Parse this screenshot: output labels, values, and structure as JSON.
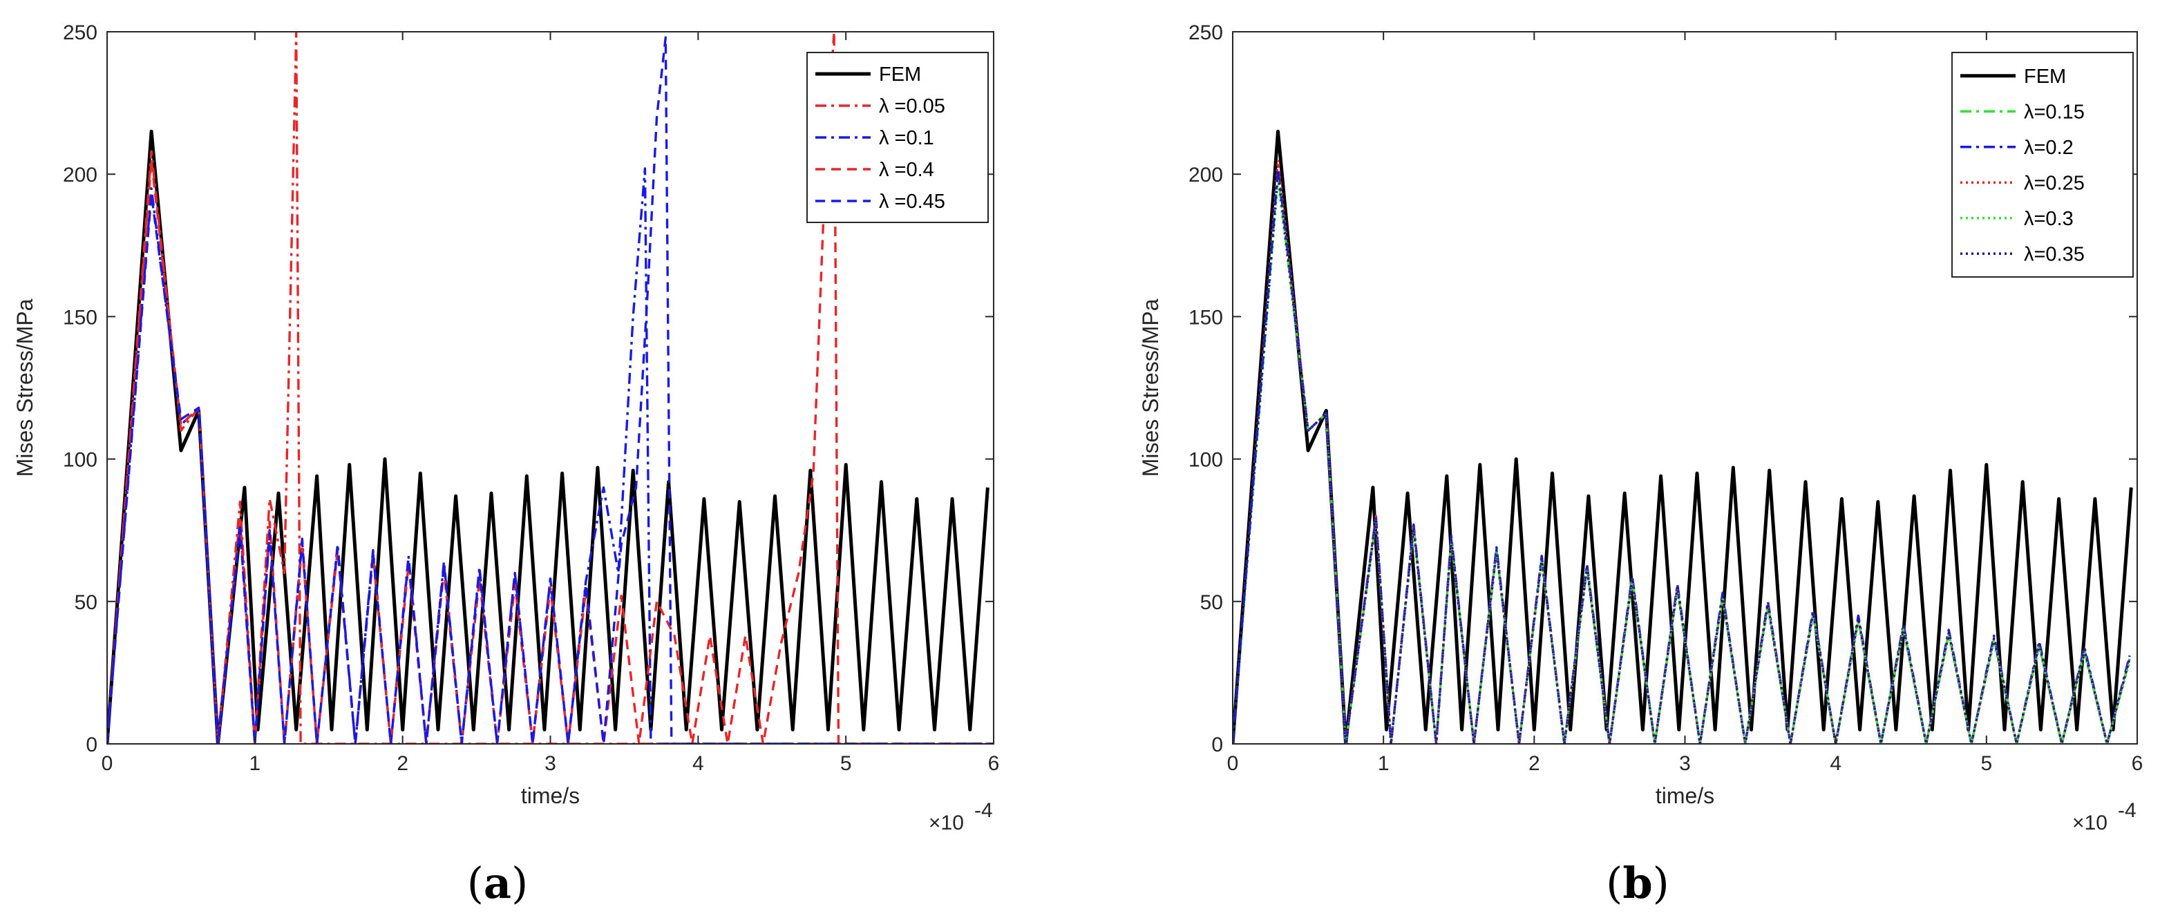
{
  "chart_data": [
    {
      "type": "line",
      "panel": "a",
      "caption_letter": "a",
      "xlabel": "time/s",
      "ylabel": "Mises Stress/MPa",
      "x_exponent_label": "×10",
      "x_exponent": "-4",
      "xlim": [
        0,
        6
      ],
      "ylim": [
        0,
        250
      ],
      "xticks": [
        "0",
        "1",
        "2",
        "3",
        "4",
        "5",
        "6"
      ],
      "yticks": [
        "0",
        "50",
        "100",
        "150",
        "200",
        "250"
      ],
      "legend_position": "top-right",
      "series": [
        {
          "name": "FEM",
          "color": "#000000",
          "style": "solid",
          "x": [
            0,
            0.3,
            0.5,
            0.62,
            0.75,
            0.93,
            1.02,
            1.16,
            1.28,
            1.42,
            1.52,
            1.64,
            1.76,
            1.88,
            2.0,
            2.12,
            2.24,
            2.36,
            2.48,
            2.6,
            2.72,
            2.84,
            2.96,
            3.08,
            3.2,
            3.32,
            3.44,
            3.56,
            3.68,
            3.8,
            3.92,
            4.04,
            4.16,
            4.28,
            4.4,
            4.52,
            4.64,
            4.76,
            4.88,
            5.0,
            5.12,
            5.24,
            5.36,
            5.48,
            5.6,
            5.72,
            5.84,
            5.96
          ],
          "y": [
            0,
            215,
            103,
            117,
            0,
            90,
            5,
            88,
            5,
            94,
            5,
            98,
            5,
            100,
            5,
            95,
            5,
            87,
            5,
            88,
            5,
            94,
            5,
            95,
            5,
            97,
            5,
            96,
            5,
            92,
            5,
            86,
            5,
            85,
            5,
            87,
            5,
            96,
            5,
            98,
            5,
            92,
            5,
            86,
            5,
            86,
            5,
            90
          ]
        },
        {
          "name": "λ =0.05",
          "color": "#e8262a",
          "style": "dashdot",
          "x": [
            0,
            0.3,
            0.5,
            0.62,
            0.75,
            0.9,
            1.0,
            1.1,
            1.2,
            1.28,
            1.31,
            1.33,
            6.0
          ],
          "y": [
            0,
            208,
            110,
            118,
            0,
            85,
            0,
            86,
            60,
            250,
            0,
            0,
            0
          ]
        },
        {
          "name": "λ =0.1",
          "color": "#1a1ae6",
          "style": "dashdot",
          "x": [
            0,
            0.3,
            0.5,
            0.62,
            0.75,
            0.9,
            1.0,
            1.1,
            1.2,
            1.32,
            1.42,
            1.56,
            1.68,
            1.8,
            1.92,
            2.04,
            2.16,
            2.28,
            2.4,
            2.52,
            2.64,
            2.76,
            2.88,
            3.0,
            3.12,
            3.24,
            3.36,
            3.46,
            3.56,
            3.64,
            3.68,
            3.72,
            6.0
          ],
          "y": [
            0,
            195,
            112,
            118,
            0,
            78,
            0,
            75,
            0,
            72,
            0,
            70,
            0,
            68,
            0,
            66,
            0,
            64,
            0,
            62,
            0,
            60,
            0,
            58,
            0,
            57,
            90,
            60,
            150,
            202,
            0,
            0,
            0
          ]
        },
        {
          "name": "λ =0.4",
          "color": "#e8262a",
          "style": "dashed",
          "x": [
            0,
            0.3,
            0.5,
            0.62,
            0.75,
            0.9,
            1.0,
            1.1,
            1.2,
            1.32,
            1.42,
            1.56,
            1.68,
            1.8,
            1.92,
            2.04,
            2.16,
            2.28,
            2.4,
            2.52,
            2.64,
            2.76,
            2.88,
            3.0,
            3.12,
            3.24,
            3.36,
            3.48,
            3.6,
            3.72,
            3.84,
            3.96,
            4.08,
            4.2,
            4.32,
            4.44,
            4.56,
            4.68,
            4.78,
            4.86,
            4.92,
            4.95,
            6.0
          ],
          "y": [
            0,
            205,
            112,
            118,
            0,
            80,
            0,
            78,
            0,
            70,
            0,
            68,
            0,
            66,
            0,
            63,
            0,
            61,
            0,
            58,
            0,
            56,
            0,
            55,
            0,
            54,
            0,
            52,
            0,
            50,
            38,
            0,
            38,
            0,
            38,
            0,
            35,
            60,
            95,
            200,
            250,
            0,
            0
          ]
        },
        {
          "name": "λ =0.45",
          "color": "#1a1ae6",
          "style": "dashed",
          "x": [
            0,
            0.3,
            0.5,
            0.62,
            0.75,
            0.9,
            1.0,
            1.1,
            1.2,
            1.32,
            1.42,
            1.56,
            1.68,
            1.8,
            1.92,
            2.04,
            2.16,
            2.28,
            2.4,
            2.52,
            2.64,
            2.76,
            2.88,
            3.0,
            3.12,
            3.24,
            3.36,
            3.48,
            3.58,
            3.66,
            3.72,
            3.78,
            3.82,
            6.0
          ],
          "y": [
            0,
            193,
            114,
            118,
            0,
            76,
            0,
            74,
            0,
            71,
            0,
            69,
            0,
            67,
            0,
            65,
            0,
            63,
            0,
            61,
            0,
            60,
            0,
            58,
            0,
            56,
            0,
            70,
            90,
            160,
            220,
            248,
            0,
            0
          ]
        }
      ]
    },
    {
      "type": "line",
      "panel": "b",
      "caption_letter": "b",
      "xlabel": "time/s",
      "ylabel": "Mises Stress/MPa",
      "x_exponent_label": "×10",
      "x_exponent": "-4",
      "xlim": [
        0,
        6
      ],
      "ylim": [
        0,
        250
      ],
      "xticks": [
        "0",
        "1",
        "2",
        "3",
        "4",
        "5",
        "6"
      ],
      "yticks": [
        "0",
        "50",
        "100",
        "150",
        "200",
        "250"
      ],
      "legend_position": "top-right",
      "series": [
        {
          "name": "FEM",
          "color": "#000000",
          "style": "solid",
          "x": [
            0,
            0.3,
            0.5,
            0.62,
            0.75,
            0.93,
            1.02,
            1.16,
            1.28,
            1.42,
            1.52,
            1.64,
            1.76,
            1.88,
            2.0,
            2.12,
            2.24,
            2.36,
            2.48,
            2.6,
            2.72,
            2.84,
            2.96,
            3.08,
            3.2,
            3.32,
            3.44,
            3.56,
            3.68,
            3.8,
            3.92,
            4.04,
            4.16,
            4.28,
            4.4,
            4.52,
            4.64,
            4.76,
            4.88,
            5.0,
            5.12,
            5.24,
            5.36,
            5.48,
            5.6,
            5.72,
            5.84,
            5.96
          ],
          "y": [
            0,
            215,
            103,
            117,
            0,
            90,
            5,
            88,
            5,
            94,
            5,
            98,
            5,
            100,
            5,
            95,
            5,
            87,
            5,
            88,
            5,
            94,
            5,
            95,
            5,
            97,
            5,
            96,
            5,
            92,
            5,
            86,
            5,
            85,
            5,
            87,
            5,
            96,
            5,
            98,
            5,
            92,
            5,
            86,
            5,
            86,
            5,
            90
          ]
        },
        {
          "name": "λ=0.15",
          "color": "#2ee62e",
          "style": "dashdot",
          "x": [
            0,
            0.3,
            0.5,
            0.62,
            0.75,
            0.95,
            1.05,
            1.2,
            1.35,
            1.45,
            1.6,
            1.75,
            1.9,
            2.05,
            2.2,
            2.35,
            2.5,
            2.65,
            2.8,
            2.95,
            3.1,
            3.25,
            3.4,
            3.55,
            3.7,
            3.85,
            4.0,
            4.15,
            4.3,
            4.45,
            4.6,
            4.75,
            4.9,
            5.05,
            5.2,
            5.35,
            5.5,
            5.65,
            5.8,
            5.95
          ],
          "y": [
            0,
            200,
            110,
            116,
            0,
            79,
            0,
            76,
            0,
            72,
            0,
            68,
            0,
            65,
            0,
            62,
            0,
            58,
            0,
            55,
            0,
            52,
            0,
            49,
            0,
            46,
            0,
            44,
            0,
            41,
            0,
            39,
            0,
            37,
            0,
            35,
            0,
            33,
            0,
            30
          ]
        },
        {
          "name": "λ=0.2",
          "color": "#1a1ae6",
          "style": "dashdot",
          "x": [
            0,
            0.3,
            0.5,
            0.62,
            0.75,
            0.95,
            1.05,
            1.2,
            1.35,
            1.45,
            1.6,
            1.75,
            1.9,
            2.05,
            2.2,
            2.35,
            2.5,
            2.65,
            2.8,
            2.95,
            3.1,
            3.25,
            3.4,
            3.55,
            3.7,
            3.85,
            4.0,
            4.15,
            4.3,
            4.45,
            4.6,
            4.75,
            4.9,
            5.05,
            5.2,
            5.35,
            5.5,
            5.65,
            5.8,
            5.95
          ],
          "y": [
            0,
            203,
            110,
            116,
            0,
            80,
            0,
            77,
            0,
            73,
            0,
            69,
            0,
            66,
            0,
            63,
            0,
            59,
            0,
            56,
            0,
            53,
            0,
            50,
            0,
            47,
            0,
            45,
            0,
            42,
            0,
            40,
            0,
            38,
            0,
            36,
            0,
            34,
            0,
            31
          ]
        },
        {
          "name": "λ=0.25",
          "color": "#e8262a",
          "style": "dotted",
          "x": [
            0,
            0.3,
            0.5,
            0.62,
            0.75,
            0.95,
            1.05,
            1.2,
            1.35,
            1.45,
            1.6,
            1.75,
            1.9,
            2.05,
            2.2,
            2.35,
            2.5,
            2.65,
            2.8,
            2.95,
            3.1,
            3.25,
            3.4,
            3.55,
            3.7,
            3.85,
            4.0,
            4.15,
            4.3,
            4.45,
            4.6,
            4.75,
            4.9,
            5.05,
            5.2,
            5.35,
            5.5,
            5.65,
            5.8,
            5.95
          ],
          "y": [
            0,
            205,
            110,
            116,
            0,
            80,
            0,
            76,
            0,
            72,
            0,
            68,
            0,
            65,
            0,
            62,
            0,
            58,
            0,
            55,
            0,
            52,
            0,
            49,
            0,
            46,
            0,
            44,
            0,
            41,
            0,
            39,
            0,
            37,
            0,
            35,
            0,
            33,
            0,
            30
          ]
        },
        {
          "name": "λ=0.3",
          "color": "#2ee62e",
          "style": "dotted",
          "x": [
            0,
            0.3,
            0.5,
            0.62,
            0.75,
            0.95,
            1.05,
            1.2,
            1.35,
            1.45,
            1.6,
            1.75,
            1.9,
            2.05,
            2.2,
            2.35,
            2.5,
            2.65,
            2.8,
            2.95,
            3.1,
            3.25,
            3.4,
            3.55,
            3.7,
            3.85,
            4.0,
            4.15,
            4.3,
            4.45,
            4.6,
            4.75,
            4.9,
            5.05,
            5.2,
            5.35,
            5.5,
            5.65,
            5.8,
            5.95
          ],
          "y": [
            0,
            198,
            110,
            116,
            0,
            78,
            0,
            75,
            0,
            71,
            0,
            67,
            0,
            64,
            0,
            61,
            0,
            57,
            0,
            54,
            0,
            51,
            0,
            48,
            0,
            45,
            0,
            43,
            0,
            40,
            0,
            38,
            0,
            36,
            0,
            34,
            0,
            32,
            0,
            29
          ]
        },
        {
          "name": "λ=0.35",
          "color": "#1a1a99",
          "style": "dotted",
          "x": [
            0,
            0.3,
            0.5,
            0.62,
            0.75,
            0.95,
            1.05,
            1.2,
            1.35,
            1.45,
            1.6,
            1.75,
            1.9,
            2.05,
            2.2,
            2.35,
            2.5,
            2.65,
            2.8,
            2.95,
            3.1,
            3.25,
            3.4,
            3.55,
            3.7,
            3.85,
            4.0,
            4.15,
            4.3,
            4.45,
            4.6,
            4.75,
            4.9,
            5.05,
            5.2,
            5.35,
            5.5,
            5.65,
            5.8,
            5.95
          ],
          "y": [
            0,
            201,
            110,
            116,
            0,
            79,
            0,
            76,
            0,
            72,
            0,
            68,
            0,
            65,
            0,
            62,
            0,
            58,
            0,
            55,
            0,
            52,
            0,
            49,
            0,
            46,
            0,
            44,
            0,
            41,
            0,
            39,
            0,
            37,
            0,
            35,
            0,
            33,
            0,
            30
          ]
        }
      ]
    }
  ]
}
